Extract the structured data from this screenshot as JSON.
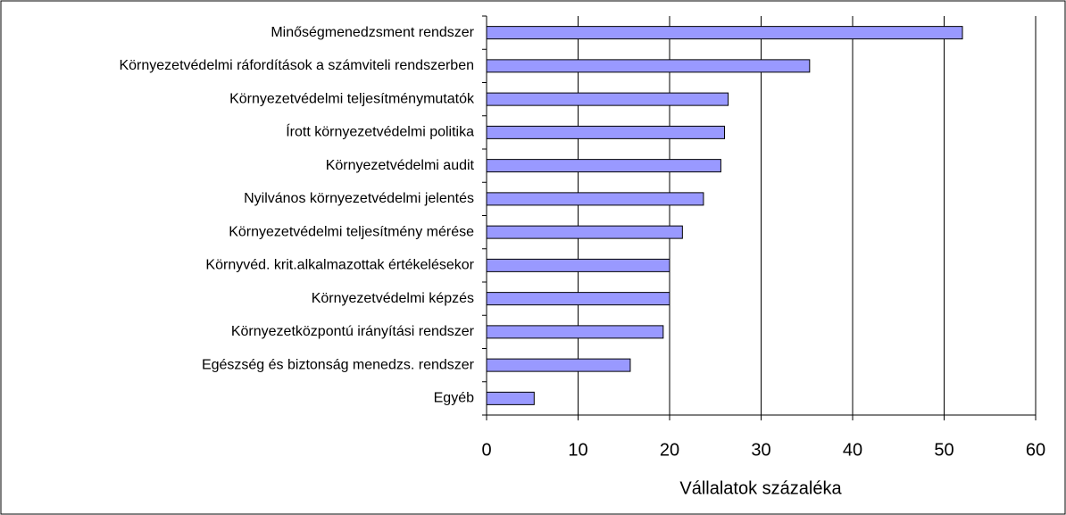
{
  "chart_data": {
    "type": "barh",
    "xlabel": "Vállalatok százaléka",
    "categories": [
      "Minőségmenedzsment rendszer",
      "Környezetvédelmi ráfordítások a számviteli rendszerben",
      "Környezetvédelmi teljesítménymutatók",
      "Írott környezetvédelmi politika",
      "Környezetvédelmi audit",
      "Nyilvános környezetvédelmi jelentés",
      "Környezetvédelmi teljesítmény mérése",
      "Környvéd. krit.alkalmazottak értékelésekor",
      "Környezetvédelmi képzés",
      "Környezetközpontú irányítási rendszer",
      "Egészség és biztonság menedzs. rendszer",
      "Egyéb"
    ],
    "values": [
      52.0,
      35.3,
      26.4,
      26.0,
      25.6,
      23.7,
      21.4,
      20.0,
      20.0,
      19.3,
      15.7,
      5.2
    ],
    "color": "#9999ff",
    "xlim": [
      0,
      60
    ],
    "xticks": [
      0,
      10,
      20,
      30,
      40,
      50,
      60
    ],
    "grid": true
  }
}
